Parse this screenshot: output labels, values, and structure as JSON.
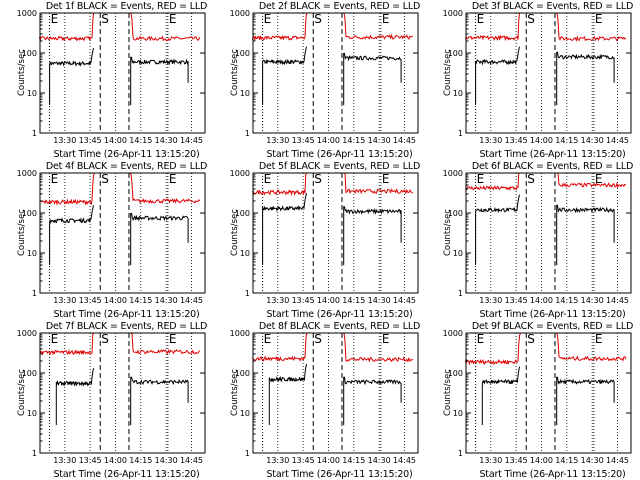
{
  "colors": {
    "events": "#000000",
    "lld": "#e00000",
    "axes": "#000000"
  },
  "chart_data": [
    {
      "type": "line",
      "title": "Det 1f BLACK = Events, RED = LLD",
      "xlabel": "Start Time (26-Apr-11 13:15:20)",
      "ylabel": "Counts/sec",
      "x_ticks": [
        "13:30",
        "13:45",
        "14:00",
        "14:15",
        "14:30",
        "14:45"
      ],
      "y_ticks": [
        "1",
        "10",
        "100",
        "1000"
      ],
      "ylim": [
        1,
        1000
      ],
      "ylog": true,
      "markers": [
        {
          "label": "E",
          "time": "13:21"
        },
        {
          "label": "S",
          "time": "13:51"
        },
        {
          "label": "E",
          "time": "14:31"
        }
      ],
      "series": [
        {
          "name": "BLACK = Events",
          "segments": [
            {
              "start": "13:21",
              "end": "13:47",
              "level": 55
            },
            {
              "start": "14:09",
              "end": "14:43",
              "level": 60
            }
          ]
        },
        {
          "name": "RED = LLD",
          "segments": [
            {
              "start": "13:15",
              "end": "13:48",
              "level": 230
            },
            {
              "start": "14:08",
              "end": "14:50",
              "level": 230
            }
          ]
        }
      ]
    },
    {
      "type": "line",
      "title": "Det 2f BLACK = Events, RED = LLD",
      "xlabel": "Start Time (26-Apr-11 13:15:20)",
      "ylabel": "Counts/sec",
      "x_ticks": [
        "13:30",
        "13:45",
        "14:00",
        "14:15",
        "14:30",
        "14:45"
      ],
      "y_ticks": [
        "1",
        "10",
        "100",
        "1000"
      ],
      "ylim": [
        1,
        1000
      ],
      "ylog": true,
      "markers": [
        {
          "label": "E",
          "time": "13:21"
        },
        {
          "label": "S",
          "time": "13:51"
        },
        {
          "label": "E",
          "time": "14:31"
        }
      ],
      "series": [
        {
          "name": "BLACK = Events",
          "segments": [
            {
              "start": "13:21",
              "end": "13:47",
              "level": 60
            },
            {
              "start": "14:09",
              "end": "14:43",
              "level": 75
            }
          ]
        },
        {
          "name": "RED = LLD",
          "segments": [
            {
              "start": "13:15",
              "end": "13:48",
              "level": 240
            },
            {
              "start": "14:08",
              "end": "14:50",
              "level": 250
            }
          ]
        }
      ]
    },
    {
      "type": "line",
      "title": "Det 3f BLACK = Events, RED = LLD",
      "xlabel": "Start Time (26-Apr-11 13:15:20)",
      "ylabel": "Counts/sec",
      "x_ticks": [
        "13:30",
        "13:45",
        "14:00",
        "14:15",
        "14:30",
        "14:45"
      ],
      "y_ticks": [
        "1",
        "10",
        "100",
        "1000"
      ],
      "ylim": [
        1,
        1000
      ],
      "ylog": true,
      "markers": [
        {
          "label": "E",
          "time": "13:21"
        },
        {
          "label": "S",
          "time": "13:51"
        },
        {
          "label": "E",
          "time": "14:31"
        }
      ],
      "series": [
        {
          "name": "BLACK = Events",
          "segments": [
            {
              "start": "13:21",
              "end": "13:47",
              "level": 60
            },
            {
              "start": "14:09",
              "end": "14:43",
              "level": 80
            }
          ]
        },
        {
          "name": "RED = LLD",
          "segments": [
            {
              "start": "13:15",
              "end": "13:48",
              "level": 240
            },
            {
              "start": "14:08",
              "end": "14:50",
              "level": 230
            }
          ]
        }
      ]
    },
    {
      "type": "line",
      "title": "Det 4f BLACK = Events, RED = LLD",
      "xlabel": "Start Time (26-Apr-11 13:15:20)",
      "ylabel": "Counts/sec",
      "x_ticks": [
        "13:30",
        "13:45",
        "14:00",
        "14:15",
        "14:30",
        "14:45"
      ],
      "y_ticks": [
        "1",
        "10",
        "100",
        "1000"
      ],
      "ylim": [
        1,
        1000
      ],
      "ylog": true,
      "markers": [
        {
          "label": "E",
          "time": "13:21"
        },
        {
          "label": "S",
          "time": "13:51"
        },
        {
          "label": "E",
          "time": "14:31"
        }
      ],
      "series": [
        {
          "name": "BLACK = Events",
          "segments": [
            {
              "start": "13:21",
              "end": "13:47",
              "level": 65
            },
            {
              "start": "14:09",
              "end": "14:43",
              "level": 75
            }
          ]
        },
        {
          "name": "RED = LLD",
          "segments": [
            {
              "start": "13:15",
              "end": "13:48",
              "level": 190
            },
            {
              "start": "14:08",
              "end": "14:50",
              "level": 200
            }
          ]
        }
      ]
    },
    {
      "type": "line",
      "title": "Det 5f BLACK = Events, RED = LLD",
      "xlabel": "Start Time (26-Apr-11 13:15:20)",
      "ylabel": "Counts/sec",
      "x_ticks": [
        "13:30",
        "13:45",
        "14:00",
        "14:15",
        "14:30",
        "14:45"
      ],
      "y_ticks": [
        "1",
        "10",
        "100",
        "1000"
      ],
      "ylim": [
        1,
        1000
      ],
      "ylog": true,
      "markers": [
        {
          "label": "E",
          "time": "13:21"
        },
        {
          "label": "S",
          "time": "13:51"
        },
        {
          "label": "E",
          "time": "14:31"
        }
      ],
      "series": [
        {
          "name": "BLACK = Events",
          "segments": [
            {
              "start": "13:21",
              "end": "13:47",
              "level": 130
            },
            {
              "start": "14:09",
              "end": "14:43",
              "level": 110
            }
          ]
        },
        {
          "name": "RED = LLD",
          "segments": [
            {
              "start": "13:15",
              "end": "13:48",
              "level": 330
            },
            {
              "start": "14:08",
              "end": "14:50",
              "level": 350
            }
          ]
        }
      ]
    },
    {
      "type": "line",
      "title": "Det 6f BLACK = Events, RED = LLD",
      "xlabel": "Start Time (26-Apr-11 13:15:20)",
      "ylabel": "Counts/sec",
      "x_ticks": [
        "13:30",
        "13:45",
        "14:00",
        "14:15",
        "14:30",
        "14:45"
      ],
      "y_ticks": [
        "1",
        "10",
        "100",
        "1000"
      ],
      "ylim": [
        1,
        1000
      ],
      "ylog": true,
      "markers": [
        {
          "label": "E",
          "time": "13:21"
        },
        {
          "label": "S",
          "time": "13:51"
        },
        {
          "label": "E",
          "time": "14:31"
        }
      ],
      "series": [
        {
          "name": "BLACK = Events",
          "segments": [
            {
              "start": "13:21",
              "end": "13:47",
              "level": 120
            },
            {
              "start": "14:09",
              "end": "14:43",
              "level": 120
            }
          ]
        },
        {
          "name": "RED = LLD",
          "segments": [
            {
              "start": "13:15",
              "end": "13:48",
              "level": 420
            },
            {
              "start": "14:08",
              "end": "14:50",
              "level": 500
            }
          ]
        }
      ]
    },
    {
      "type": "line",
      "title": "Det 7f BLACK = Events, RED = LLD",
      "xlabel": "Start Time (26-Apr-11 13:15:20)",
      "ylabel": "Counts/sec",
      "x_ticks": [
        "13:30",
        "13:45",
        "14:00",
        "14:15",
        "14:30",
        "14:45"
      ],
      "y_ticks": [
        "1",
        "10",
        "100",
        "1000"
      ],
      "ylim": [
        1,
        1000
      ],
      "ylog": true,
      "markers": [
        {
          "label": "E",
          "time": "13:21"
        },
        {
          "label": "S",
          "time": "13:51"
        },
        {
          "label": "E",
          "time": "14:31"
        }
      ],
      "series": [
        {
          "name": "BLACK = Events",
          "segments": [
            {
              "start": "13:25",
              "end": "13:47",
              "level": 55
            },
            {
              "start": "14:09",
              "end": "14:43",
              "level": 60
            }
          ]
        },
        {
          "name": "RED = LLD",
          "segments": [
            {
              "start": "13:15",
              "end": "13:48",
              "level": 330
            },
            {
              "start": "14:08",
              "end": "14:50",
              "level": 340
            }
          ]
        }
      ]
    },
    {
      "type": "line",
      "title": "Det 8f BLACK = Events, RED = LLD",
      "xlabel": "Start Time (26-Apr-11 13:15:20)",
      "ylabel": "Counts/sec",
      "x_ticks": [
        "13:30",
        "13:45",
        "14:00",
        "14:15",
        "14:30",
        "14:45"
      ],
      "y_ticks": [
        "1",
        "10",
        "100",
        "1000"
      ],
      "ylim": [
        1,
        1000
      ],
      "ylog": true,
      "markers": [
        {
          "label": "E",
          "time": "13:21"
        },
        {
          "label": "S",
          "time": "13:51"
        },
        {
          "label": "E",
          "time": "14:31"
        }
      ],
      "series": [
        {
          "name": "BLACK = Events",
          "segments": [
            {
              "start": "13:25",
              "end": "13:47",
              "level": 70
            },
            {
              "start": "14:09",
              "end": "14:43",
              "level": 60
            }
          ]
        },
        {
          "name": "RED = LLD",
          "segments": [
            {
              "start": "13:15",
              "end": "13:48",
              "level": 230
            },
            {
              "start": "14:08",
              "end": "14:50",
              "level": 220
            }
          ]
        }
      ]
    },
    {
      "type": "line",
      "title": "Det 9f BLACK = Events, RED = LLD",
      "xlabel": "Start Time (26-Apr-11 13:15:20)",
      "ylabel": "Counts/sec",
      "x_ticks": [
        "13:30",
        "13:45",
        "14:00",
        "14:15",
        "14:30",
        "14:45"
      ],
      "y_ticks": [
        "1",
        "10",
        "100",
        "1000"
      ],
      "ylim": [
        1,
        1000
      ],
      "ylog": true,
      "markers": [
        {
          "label": "E",
          "time": "13:21"
        },
        {
          "label": "S",
          "time": "13:51"
        },
        {
          "label": "E",
          "time": "14:31"
        }
      ],
      "series": [
        {
          "name": "BLACK = Events",
          "segments": [
            {
              "start": "13:25",
              "end": "13:47",
              "level": 60
            },
            {
              "start": "14:09",
              "end": "14:43",
              "level": 60
            }
          ]
        },
        {
          "name": "RED = LLD",
          "segments": [
            {
              "start": "13:15",
              "end": "13:48",
              "level": 190
            },
            {
              "start": "14:08",
              "end": "14:50",
              "level": 230
            }
          ]
        }
      ]
    }
  ]
}
